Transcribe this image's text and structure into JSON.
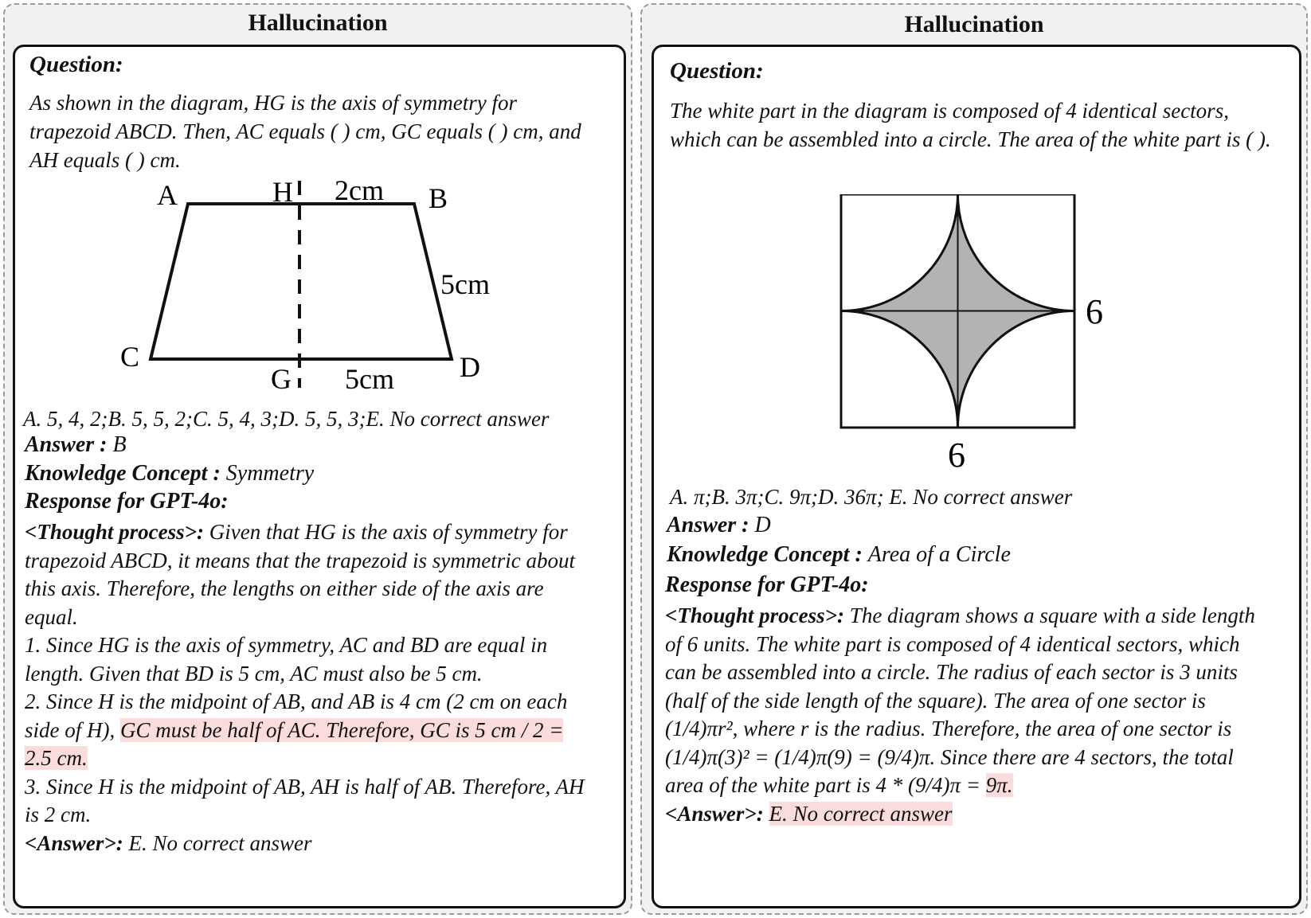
{
  "left": {
    "title": "Hallucination",
    "question_label": "Question:",
    "question_text": "As shown in the diagram, HG is the axis of symmetry for trapezoid ABCD. Then, AC equals ( ) cm, GC equals ( ) cm, and AH equals ( ) cm.",
    "diagram": {
      "labels": {
        "A": "A",
        "H": "H",
        "B": "B",
        "C": "C",
        "D": "D",
        "G": "G"
      },
      "top_measure": "2cm",
      "side_measure": "5cm",
      "bottom_measure": "5cm"
    },
    "options": "A. 5, 4, 2;B. 5, 5, 2;C. 5, 4, 3;D. 5, 5, 3;E. No correct answer",
    "answer_label": "Answer :",
    "answer_value": "B",
    "concept_label": "Knowledge Concept :",
    "concept_value": "Symmetry",
    "response_label": "Response for GPT-4o:",
    "thought_label": "<Thought process>:",
    "thought_text": "Given that HG is the axis of symmetry for trapezoid ABCD, it means that the trapezoid is symmetric about this axis. Therefore, the lengths on either side of the axis are equal.",
    "step1": "1. Since HG is the axis of symmetry, AC and BD are equal in length. Given that BD is 5 cm, AC must also be 5 cm.",
    "step2_pre": "2. Since H is the midpoint of AB, and AB is 4 cm (2 cm on each side of H),",
    "step2_hl": "GC must be half of AC. Therefore, GC is 5 cm / 2 = 2.5 cm.",
    "step3": "3. Since H is the midpoint of AB, AH is half of AB. Therefore, AH is 2 cm.",
    "final_label": "<Answer>:",
    "final_value": "E. No correct answer"
  },
  "right": {
    "title": "Hallucination",
    "question_label": "Question:",
    "question_text": "The white part in the diagram is composed of 4 identical sectors, which can be assembled into a circle. The area of the white part is (     ).",
    "diagram": {
      "side_right": "6",
      "side_bottom": "6"
    },
    "options": "A. π;B. 3π;C. 9π;D. 36π; E. No correct answer",
    "answer_label": "Answer :",
    "answer_value": "D",
    "concept_label": "Knowledge Concept :",
    "concept_value": "Area of a Circle",
    "response_label": "Response for GPT-4o:",
    "thought_label": "<Thought process>:",
    "thought_text": "The diagram shows a square with a side length of 6 units. The white part is composed of 4 identical sectors, which can be assembled into a circle. The radius of each sector is 3 units (half of the side length of the square). The area of one sector is (1/4)πr², where r is the radius. Therefore, the area of one sector is (1/4)π(3)² = (1/4)π(9) = (9/4)π. Since there are 4 sectors, the total area of the white part is 4 * (9/4)π =",
    "thought_hl": "9π.",
    "final_label": "<Answer>:",
    "final_value": "E. No correct answer",
    "colors": {
      "highlight": "#fbdcdc",
      "shaded": "#b3b3b3"
    }
  }
}
